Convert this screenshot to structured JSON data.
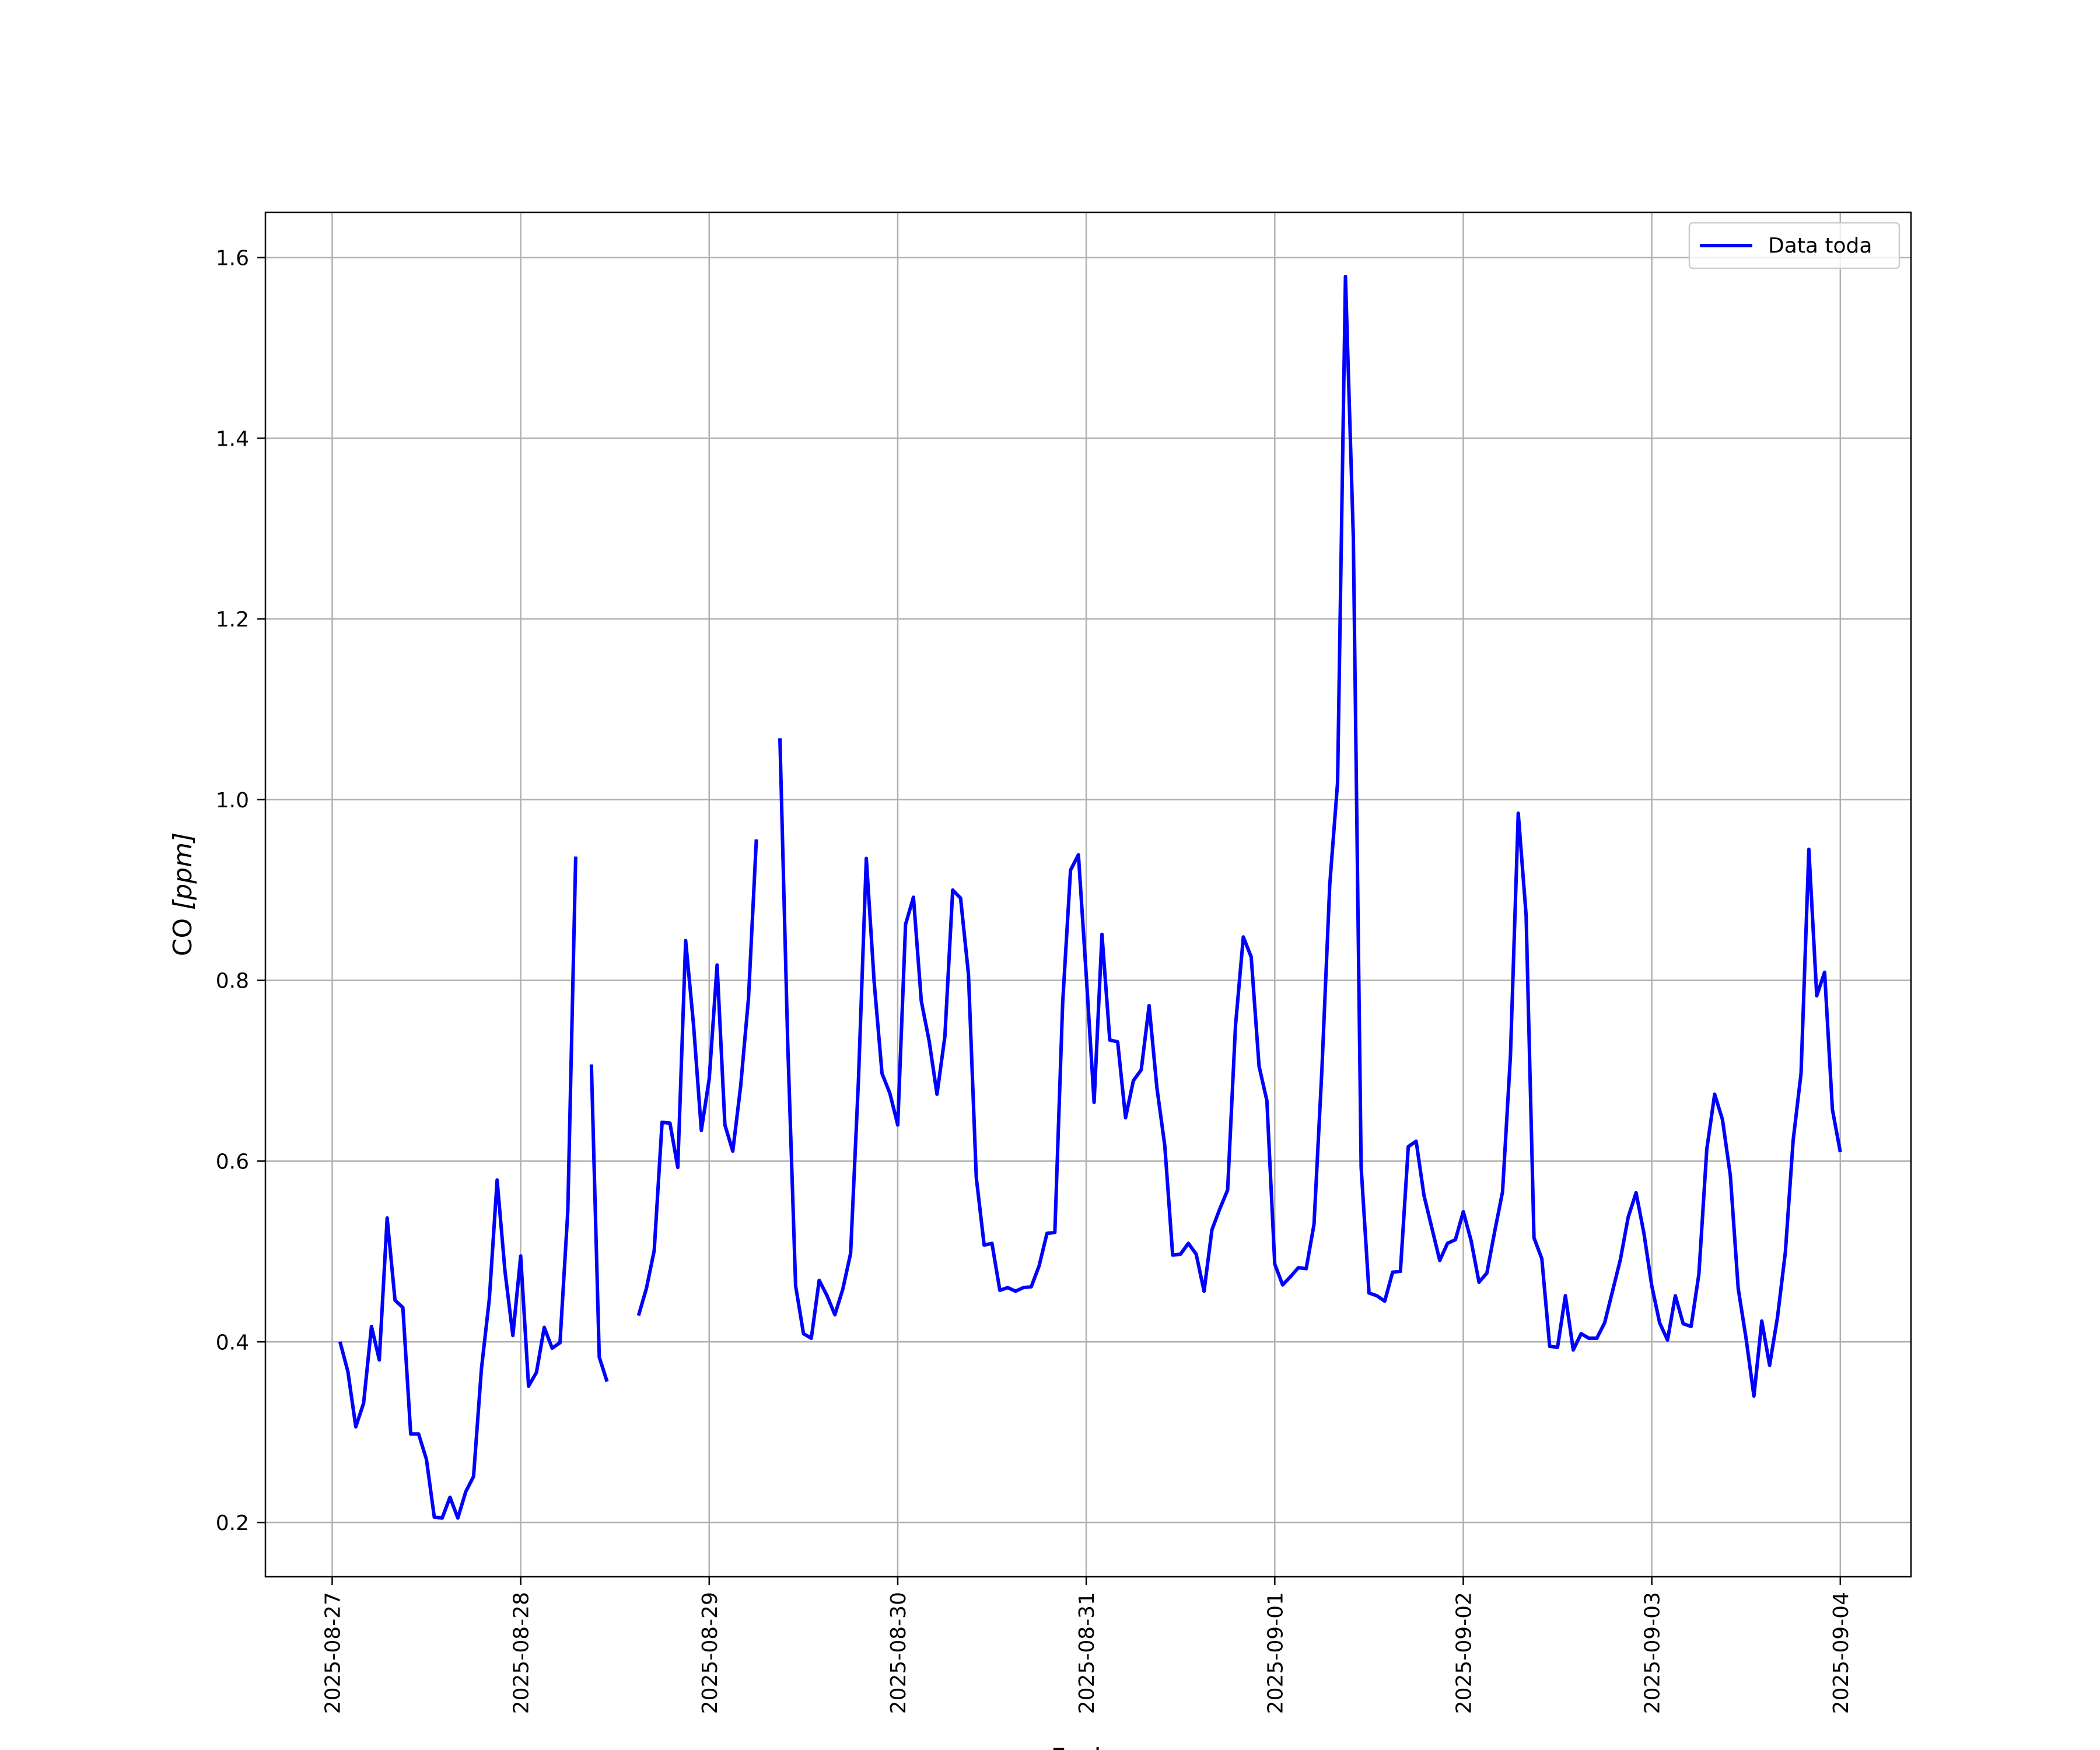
{
  "chart_data": {
    "type": "line",
    "title": "",
    "xlabel": "Fecha",
    "ylabel_main": "CO ",
    "ylabel_unit": "[ppm]",
    "x_ticks": [
      "2025-08-27",
      "2025-08-28",
      "2025-08-29",
      "2025-08-30",
      "2025-08-31",
      "2025-09-01",
      "2025-09-02",
      "2025-09-03",
      "2025-09-04"
    ],
    "y_ticks": [
      "0.2",
      "0.4",
      "0.6",
      "0.8",
      "1.0",
      "1.2",
      "1.4",
      "1.6"
    ],
    "xlim": [
      "2025-08-26 15:30",
      "2025-09-04 09:00"
    ],
    "ylim": [
      0.14,
      1.65
    ],
    "grid": true,
    "legend_position": "top-right",
    "colors": {
      "series": "#0000ff",
      "grid": "#b0b0b0"
    },
    "series": [
      {
        "name": "Data toda",
        "color": "#0000ff",
        "points": [
          [
            "2025-08-27 01:00",
            0.4
          ],
          [
            "2025-08-27 02:00",
            0.367
          ],
          [
            "2025-08-27 03:00",
            0.306
          ],
          [
            "2025-08-27 04:00",
            0.332
          ],
          [
            "2025-08-27 05:00",
            0.417
          ],
          [
            "2025-08-27 06:00",
            0.38
          ],
          [
            "2025-08-27 07:00",
            0.537
          ],
          [
            "2025-08-27 08:00",
            0.446
          ],
          [
            "2025-08-27 09:00",
            0.438
          ],
          [
            "2025-08-27 10:00",
            0.298
          ],
          [
            "2025-08-27 11:00",
            0.298
          ],
          [
            "2025-08-27 12:00",
            0.27
          ],
          [
            "2025-08-27 13:00",
            0.206
          ],
          [
            "2025-08-27 14:00",
            0.205
          ],
          [
            "2025-08-27 15:00",
            0.228
          ],
          [
            "2025-08-27 16:00",
            0.205
          ],
          [
            "2025-08-27 17:00",
            0.234
          ],
          [
            "2025-08-27 18:00",
            0.251
          ],
          [
            "2025-08-27 19:00",
            0.37
          ],
          [
            "2025-08-27 20:00",
            0.447
          ],
          [
            "2025-08-27 21:00",
            0.579
          ],
          [
            "2025-08-27 22:00",
            0.478
          ],
          [
            "2025-08-27 23:00",
            0.407
          ],
          [
            "2025-08-28 00:00",
            0.495
          ],
          [
            "2025-08-28 01:00",
            0.351
          ],
          [
            "2025-08-28 02:00",
            0.366
          ],
          [
            "2025-08-28 03:00",
            0.416
          ],
          [
            "2025-08-28 04:00",
            0.393
          ],
          [
            "2025-08-28 05:00",
            0.399
          ],
          [
            "2025-08-28 06:00",
            0.545
          ],
          [
            "2025-08-28 07:00",
            0.937
          ],
          null,
          [
            "2025-08-28 09:00",
            0.707
          ],
          [
            "2025-08-28 10:00",
            0.383
          ],
          [
            "2025-08-28 11:00",
            0.356
          ],
          null,
          [
            "2025-08-28 15:00",
            0.429
          ],
          [
            "2025-08-28 16:00",
            0.459
          ],
          [
            "2025-08-28 17:00",
            0.501
          ],
          [
            "2025-08-28 18:00",
            0.643
          ],
          [
            "2025-08-28 19:00",
            0.642
          ],
          [
            "2025-08-28 20:00",
            0.593
          ],
          [
            "2025-08-28 21:00",
            0.844
          ],
          [
            "2025-08-28 22:00",
            0.751
          ],
          [
            "2025-08-28 23:00",
            0.634
          ],
          [
            "2025-08-29 00:00",
            0.691
          ],
          [
            "2025-08-29 01:00",
            0.817
          ],
          [
            "2025-08-29 02:00",
            0.64
          ],
          [
            "2025-08-29 03:00",
            0.611
          ],
          [
            "2025-08-29 04:00",
            0.683
          ],
          [
            "2025-08-29 05:00",
            0.78
          ],
          [
            "2025-08-29 06:00",
            0.956
          ],
          null,
          [
            "2025-08-29 09:00",
            1.068
          ],
          [
            "2025-08-29 10:00",
            0.73
          ],
          [
            "2025-08-29 11:00",
            0.462
          ],
          [
            "2025-08-29 12:00",
            0.409
          ],
          [
            "2025-08-29 13:00",
            0.404
          ],
          [
            "2025-08-29 14:00",
            0.468
          ],
          [
            "2025-08-29 15:00",
            0.451
          ],
          [
            "2025-08-29 16:00",
            0.43
          ],
          [
            "2025-08-29 17:00",
            0.458
          ],
          [
            "2025-08-29 18:00",
            0.498
          ],
          [
            "2025-08-29 19:00",
            0.689
          ],
          [
            "2025-08-29 20:00",
            0.935
          ],
          [
            "2025-08-29 21:00",
            0.798
          ],
          [
            "2025-08-29 22:00",
            0.697
          ],
          [
            "2025-08-29 23:00",
            0.675
          ],
          [
            "2025-08-30 00:00",
            0.64
          ],
          [
            "2025-08-30 01:00",
            0.862
          ],
          [
            "2025-08-30 02:00",
            0.892
          ],
          [
            "2025-08-30 03:00",
            0.777
          ],
          [
            "2025-08-30 04:00",
            0.733
          ],
          [
            "2025-08-30 05:00",
            0.674
          ],
          [
            "2025-08-30 06:00",
            0.738
          ],
          [
            "2025-08-30 07:00",
            0.9
          ],
          [
            "2025-08-30 08:00",
            0.891
          ],
          [
            "2025-08-30 09:00",
            0.807
          ],
          [
            "2025-08-30 10:00",
            0.582
          ],
          [
            "2025-08-30 11:00",
            0.507
          ],
          [
            "2025-08-30 12:00",
            0.509
          ],
          [
            "2025-08-30 13:00",
            0.457
          ],
          [
            "2025-08-30 14:00",
            0.46
          ],
          [
            "2025-08-30 15:00",
            0.456
          ],
          [
            "2025-08-30 16:00",
            0.46
          ],
          [
            "2025-08-30 17:00",
            0.461
          ],
          [
            "2025-08-30 18:00",
            0.484
          ],
          [
            "2025-08-30 19:00",
            0.52
          ],
          [
            "2025-08-30 20:00",
            0.521
          ],
          [
            "2025-08-30 21:00",
            0.775
          ],
          [
            "2025-08-30 22:00",
            0.922
          ],
          [
            "2025-08-30 23:00",
            0.939
          ],
          [
            "2025-08-31 00:00",
            0.806
          ],
          [
            "2025-08-31 01:00",
            0.665
          ],
          [
            "2025-08-31 02:00",
            0.851
          ],
          [
            "2025-08-31 03:00",
            0.734
          ],
          [
            "2025-08-31 04:00",
            0.732
          ],
          [
            "2025-08-31 05:00",
            0.648
          ],
          [
            "2025-08-31 06:00",
            0.689
          ],
          [
            "2025-08-31 07:00",
            0.701
          ],
          [
            "2025-08-31 08:00",
            0.772
          ],
          [
            "2025-08-31 09:00",
            0.681
          ],
          [
            "2025-08-31 10:00",
            0.617
          ],
          [
            "2025-08-31 11:00",
            0.496
          ],
          [
            "2025-08-31 12:00",
            0.497
          ],
          [
            "2025-08-31 13:00",
            0.509
          ],
          [
            "2025-08-31 14:00",
            0.497
          ],
          [
            "2025-08-31 15:00",
            0.456
          ],
          [
            "2025-08-31 16:00",
            0.524
          ],
          [
            "2025-08-31 17:00",
            0.547
          ],
          [
            "2025-08-31 18:00",
            0.568
          ],
          [
            "2025-08-31 19:00",
            0.75
          ],
          [
            "2025-08-31 20:00",
            0.848
          ],
          [
            "2025-08-31 21:00",
            0.826
          ],
          [
            "2025-08-31 22:00",
            0.705
          ],
          [
            "2025-08-31 23:00",
            0.667
          ],
          [
            "2025-09-01 00:00",
            0.486
          ],
          [
            "2025-09-01 01:00",
            0.463
          ],
          [
            "2025-09-01 02:00",
            0.472
          ],
          [
            "2025-09-01 03:00",
            0.482
          ],
          [
            "2025-09-01 04:00",
            0.481
          ],
          [
            "2025-09-01 05:00",
            0.53
          ],
          [
            "2025-09-01 06:00",
            0.701
          ],
          [
            "2025-09-01 07:00",
            0.906
          ],
          [
            "2025-09-01 08:00",
            1.019
          ],
          [
            "2025-09-01 09:00",
            1.579
          ],
          [
            "2025-09-01 10:00",
            1.29
          ],
          [
            "2025-09-01 11:00",
            0.593
          ],
          [
            "2025-09-01 12:00",
            0.454
          ],
          [
            "2025-09-01 13:00",
            0.451
          ],
          [
            "2025-09-01 14:00",
            0.445
          ],
          [
            "2025-09-01 15:00",
            0.477
          ],
          [
            "2025-09-01 16:00",
            0.478
          ],
          [
            "2025-09-01 17:00",
            0.616
          ],
          [
            "2025-09-01 18:00",
            0.622
          ],
          [
            "2025-09-01 19:00",
            0.562
          ],
          [
            "2025-09-01 20:00",
            0.526
          ],
          [
            "2025-09-01 21:00",
            0.49
          ],
          [
            "2025-09-01 22:00",
            0.509
          ],
          [
            "2025-09-01 23:00",
            0.513
          ],
          [
            "2025-09-02 00:00",
            0.544
          ],
          [
            "2025-09-02 01:00",
            0.512
          ],
          [
            "2025-09-02 02:00",
            0.466
          ],
          [
            "2025-09-02 03:00",
            0.476
          ],
          [
            "2025-09-02 04:00",
            0.522
          ],
          [
            "2025-09-02 05:00",
            0.566
          ],
          [
            "2025-09-02 06:00",
            0.716
          ],
          [
            "2025-09-02 07:00",
            0.985
          ],
          [
            "2025-09-02 08:00",
            0.872
          ],
          [
            "2025-09-02 09:00",
            0.515
          ],
          [
            "2025-09-02 10:00",
            0.492
          ],
          [
            "2025-09-02 11:00",
            0.395
          ],
          [
            "2025-09-02 12:00",
            0.394
          ],
          [
            "2025-09-02 13:00",
            0.451
          ],
          [
            "2025-09-02 14:00",
            0.391
          ],
          [
            "2025-09-02 15:00",
            0.409
          ],
          [
            "2025-09-02 16:00",
            0.404
          ],
          [
            "2025-09-02 17:00",
            0.404
          ],
          [
            "2025-09-02 18:00",
            0.421
          ],
          [
            "2025-09-02 19:00",
            0.456
          ],
          [
            "2025-09-02 20:00",
            0.491
          ],
          [
            "2025-09-02 21:00",
            0.538
          ],
          [
            "2025-09-02 22:00",
            0.565
          ],
          [
            "2025-09-02 23:00",
            0.52
          ],
          [
            "2025-09-03 00:00",
            0.462
          ],
          [
            "2025-09-03 01:00",
            0.421
          ],
          [
            "2025-09-03 02:00",
            0.402
          ],
          [
            "2025-09-03 03:00",
            0.451
          ],
          [
            "2025-09-03 04:00",
            0.42
          ],
          [
            "2025-09-03 05:00",
            0.417
          ],
          [
            "2025-09-03 06:00",
            0.475
          ],
          [
            "2025-09-03 07:00",
            0.613
          ],
          [
            "2025-09-03 08:00",
            0.674
          ],
          [
            "2025-09-03 09:00",
            0.646
          ],
          [
            "2025-09-03 10:00",
            0.584
          ],
          [
            "2025-09-03 11:00",
            0.459
          ],
          [
            "2025-09-03 12:00",
            0.404
          ],
          [
            "2025-09-03 13:00",
            0.34
          ],
          [
            "2025-09-03 14:00",
            0.423
          ],
          [
            "2025-09-03 15:00",
            0.374
          ],
          [
            "2025-09-03 16:00",
            0.427
          ],
          [
            "2025-09-03 17:00",
            0.499
          ],
          [
            "2025-09-03 18:00",
            0.623
          ],
          [
            "2025-09-03 19:00",
            0.697
          ],
          [
            "2025-09-03 20:00",
            0.945
          ],
          [
            "2025-09-03 21:00",
            0.783
          ],
          [
            "2025-09-03 22:00",
            0.809
          ],
          [
            "2025-09-03 23:00",
            0.657
          ],
          [
            "2025-09-04 00:00",
            0.61
          ]
        ]
      }
    ]
  }
}
